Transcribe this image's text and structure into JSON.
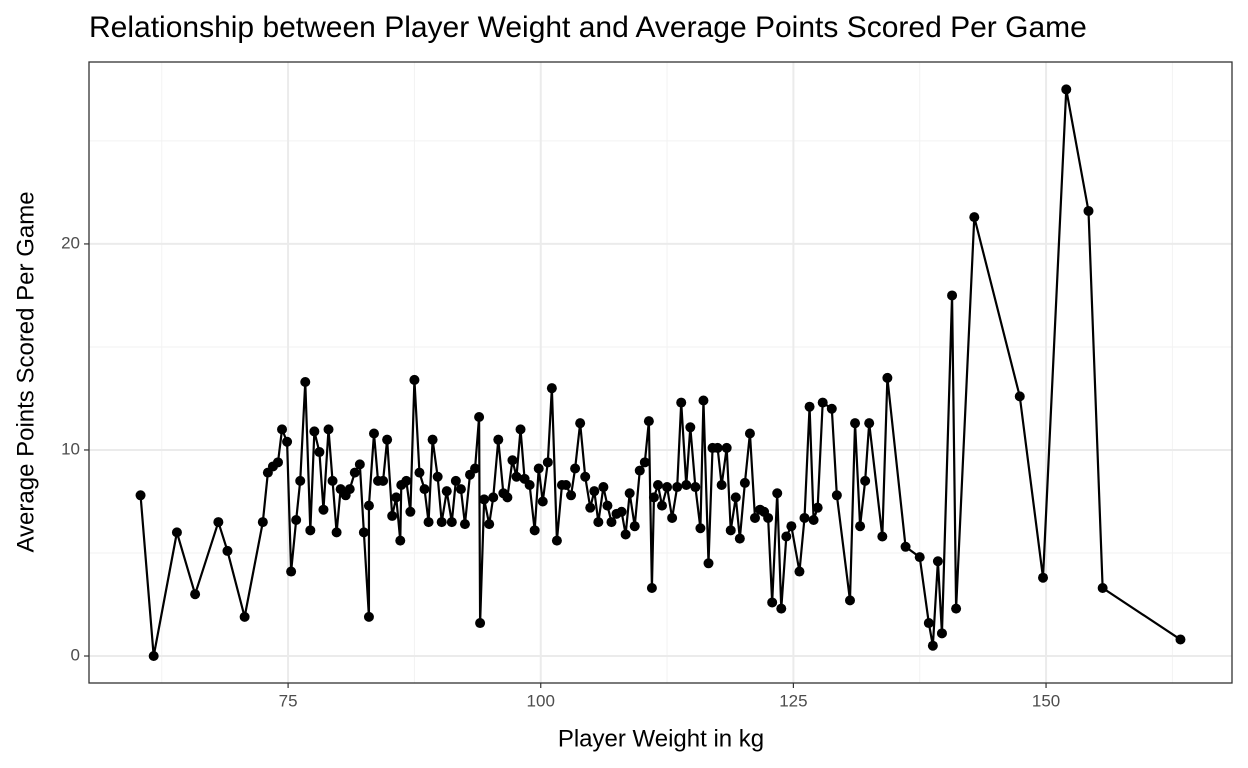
{
  "chart_data": {
    "type": "line",
    "title": "Relationship between Player Weight and Average Points Scored Per Game",
    "x_label": "Player Weight in kg",
    "y_label": "Average Points Scored Per Game",
    "x": [
      60.4,
      61.7,
      64.0,
      65.8,
      68.1,
      69.0,
      70.7,
      72.5,
      73.0,
      73.5,
      74.0,
      74.4,
      74.9,
      75.3,
      75.8,
      76.2,
      76.7,
      77.2,
      77.6,
      78.1,
      78.5,
      79.0,
      79.4,
      79.8,
      80.2,
      80.7,
      81.1,
      81.6,
      82.1,
      82.5,
      83.0,
      83.0,
      83.5,
      83.9,
      84.4,
      84.8,
      85.3,
      85.7,
      86.1,
      86.2,
      86.7,
      87.1,
      87.5,
      88.0,
      88.5,
      88.9,
      89.3,
      89.8,
      90.2,
      90.7,
      91.2,
      91.6,
      92.1,
      92.5,
      93.0,
      93.5,
      93.9,
      94.0,
      94.4,
      94.9,
      95.3,
      95.8,
      96.3,
      96.7,
      97.2,
      97.6,
      98.0,
      98.4,
      98.9,
      99.4,
      99.8,
      100.2,
      100.7,
      101.1,
      101.6,
      102.1,
      102.5,
      103.0,
      103.4,
      103.9,
      104.4,
      104.9,
      105.3,
      105.7,
      106.2,
      106.6,
      107.0,
      107.5,
      108.0,
      108.4,
      108.8,
      109.3,
      109.8,
      110.3,
      110.7,
      111.0,
      111.2,
      111.6,
      112.0,
      112.5,
      113.0,
      113.5,
      113.9,
      114.4,
      114.8,
      115.3,
      115.8,
      116.1,
      116.6,
      117.0,
      117.5,
      117.9,
      118.4,
      118.8,
      119.3,
      119.7,
      120.2,
      120.7,
      121.2,
      121.7,
      122.1,
      122.5,
      122.9,
      123.4,
      123.8,
      124.3,
      124.8,
      125.6,
      126.1,
      126.6,
      127.0,
      127.4,
      127.9,
      128.8,
      129.3,
      130.6,
      131.1,
      131.6,
      132.1,
      132.5,
      133.8,
      134.3,
      136.1,
      137.5,
      138.4,
      138.8,
      139.3,
      139.7,
      140.7,
      141.1,
      142.9,
      147.4,
      149.7,
      152.0,
      154.2,
      155.6,
      163.3
    ],
    "series": [
      {
        "color": "#000000",
        "values": [
          7.8,
          0.0,
          6.0,
          3.0,
          6.5,
          5.1,
          1.9,
          6.5,
          8.9,
          9.2,
          9.4,
          11.0,
          10.4,
          4.1,
          6.6,
          8.5,
          13.3,
          6.1,
          10.9,
          9.9,
          7.1,
          11.0,
          8.5,
          6.0,
          8.1,
          7.8,
          8.1,
          8.9,
          9.3,
          6.0,
          1.9,
          7.3,
          10.8,
          8.5,
          8.5,
          10.5,
          6.8,
          7.7,
          5.6,
          8.3,
          8.5,
          7.0,
          13.4,
          8.9,
          8.1,
          6.5,
          10.5,
          8.7,
          6.5,
          8.0,
          6.5,
          8.5,
          8.1,
          6.4,
          8.8,
          9.1,
          11.6,
          1.6,
          7.6,
          6.4,
          7.7,
          10.5,
          7.9,
          7.7,
          9.5,
          8.7,
          11.0,
          8.6,
          8.3,
          6.1,
          9.1,
          7.5,
          9.4,
          13.0,
          5.6,
          8.3,
          8.3,
          7.8,
          9.1,
          11.3,
          8.7,
          7.2,
          8.0,
          6.5,
          8.2,
          7.3,
          6.5,
          6.9,
          7.0,
          5.9,
          7.9,
          6.3,
          9.0,
          9.4,
          11.4,
          3.3,
          7.7,
          8.3,
          7.3,
          8.2,
          6.7,
          8.2,
          12.3,
          8.3,
          11.1,
          8.2,
          6.2,
          12.4,
          4.5,
          10.1,
          10.1,
          8.3,
          10.1,
          6.1,
          7.7,
          5.7,
          8.4,
          10.8,
          6.7,
          7.1,
          7.0,
          6.7,
          2.6,
          7.9,
          2.3,
          5.8,
          6.3,
          4.1,
          6.7,
          12.1,
          6.6,
          7.2,
          12.3,
          12.0,
          7.8,
          2.7,
          11.3,
          6.3,
          8.5,
          11.3,
          5.8,
          13.5,
          5.3,
          4.8,
          1.6,
          0.5,
          4.6,
          1.1,
          17.5,
          2.3,
          21.3,
          12.6,
          3.8,
          27.5,
          21.6,
          3.3,
          0.8
        ]
      }
    ],
    "xlim": [
      55.3,
      168.4
    ],
    "ylim": [
      -1.31,
      28.83
    ],
    "xticks": [
      75,
      100,
      125,
      150
    ],
    "yticks": [
      0,
      10,
      20
    ],
    "grid": true
  }
}
